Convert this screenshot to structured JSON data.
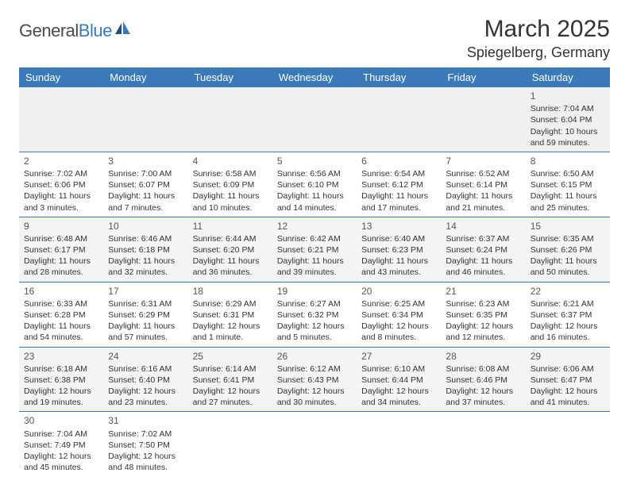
{
  "logo": {
    "text1": "General",
    "text2": "Blue",
    "text1_color": "#4a4a4a",
    "text2_color": "#3b7ab8",
    "icon_color": "#3b7ab8"
  },
  "header": {
    "month_title": "March 2025",
    "location": "Spiegelberg, Germany"
  },
  "colors": {
    "header_bg": "#3b7ab8",
    "header_fg": "#ffffff",
    "row_alt_bg": "#f4f4f4",
    "row_bg": "#ffffff",
    "border": "#3b7ab8",
    "text": "#333333"
  },
  "weekdays": [
    "Sunday",
    "Monday",
    "Tuesday",
    "Wednesday",
    "Thursday",
    "Friday",
    "Saturday"
  ],
  "calendar": {
    "type": "table",
    "columns": 7,
    "rows": [
      [
        null,
        null,
        null,
        null,
        null,
        null,
        {
          "day": "1",
          "sunrise": "Sunrise: 7:04 AM",
          "sunset": "Sunset: 6:04 PM",
          "daylight": "Daylight: 10 hours and 59 minutes."
        }
      ],
      [
        {
          "day": "2",
          "sunrise": "Sunrise: 7:02 AM",
          "sunset": "Sunset: 6:06 PM",
          "daylight": "Daylight: 11 hours and 3 minutes."
        },
        {
          "day": "3",
          "sunrise": "Sunrise: 7:00 AM",
          "sunset": "Sunset: 6:07 PM",
          "daylight": "Daylight: 11 hours and 7 minutes."
        },
        {
          "day": "4",
          "sunrise": "Sunrise: 6:58 AM",
          "sunset": "Sunset: 6:09 PM",
          "daylight": "Daylight: 11 hours and 10 minutes."
        },
        {
          "day": "5",
          "sunrise": "Sunrise: 6:56 AM",
          "sunset": "Sunset: 6:10 PM",
          "daylight": "Daylight: 11 hours and 14 minutes."
        },
        {
          "day": "6",
          "sunrise": "Sunrise: 6:54 AM",
          "sunset": "Sunset: 6:12 PM",
          "daylight": "Daylight: 11 hours and 17 minutes."
        },
        {
          "day": "7",
          "sunrise": "Sunrise: 6:52 AM",
          "sunset": "Sunset: 6:14 PM",
          "daylight": "Daylight: 11 hours and 21 minutes."
        },
        {
          "day": "8",
          "sunrise": "Sunrise: 6:50 AM",
          "sunset": "Sunset: 6:15 PM",
          "daylight": "Daylight: 11 hours and 25 minutes."
        }
      ],
      [
        {
          "day": "9",
          "sunrise": "Sunrise: 6:48 AM",
          "sunset": "Sunset: 6:17 PM",
          "daylight": "Daylight: 11 hours and 28 minutes."
        },
        {
          "day": "10",
          "sunrise": "Sunrise: 6:46 AM",
          "sunset": "Sunset: 6:18 PM",
          "daylight": "Daylight: 11 hours and 32 minutes."
        },
        {
          "day": "11",
          "sunrise": "Sunrise: 6:44 AM",
          "sunset": "Sunset: 6:20 PM",
          "daylight": "Daylight: 11 hours and 36 minutes."
        },
        {
          "day": "12",
          "sunrise": "Sunrise: 6:42 AM",
          "sunset": "Sunset: 6:21 PM",
          "daylight": "Daylight: 11 hours and 39 minutes."
        },
        {
          "day": "13",
          "sunrise": "Sunrise: 6:40 AM",
          "sunset": "Sunset: 6:23 PM",
          "daylight": "Daylight: 11 hours and 43 minutes."
        },
        {
          "day": "14",
          "sunrise": "Sunrise: 6:37 AM",
          "sunset": "Sunset: 6:24 PM",
          "daylight": "Daylight: 11 hours and 46 minutes."
        },
        {
          "day": "15",
          "sunrise": "Sunrise: 6:35 AM",
          "sunset": "Sunset: 6:26 PM",
          "daylight": "Daylight: 11 hours and 50 minutes."
        }
      ],
      [
        {
          "day": "16",
          "sunrise": "Sunrise: 6:33 AM",
          "sunset": "Sunset: 6:28 PM",
          "daylight": "Daylight: 11 hours and 54 minutes."
        },
        {
          "day": "17",
          "sunrise": "Sunrise: 6:31 AM",
          "sunset": "Sunset: 6:29 PM",
          "daylight": "Daylight: 11 hours and 57 minutes."
        },
        {
          "day": "18",
          "sunrise": "Sunrise: 6:29 AM",
          "sunset": "Sunset: 6:31 PM",
          "daylight": "Daylight: 12 hours and 1 minute."
        },
        {
          "day": "19",
          "sunrise": "Sunrise: 6:27 AM",
          "sunset": "Sunset: 6:32 PM",
          "daylight": "Daylight: 12 hours and 5 minutes."
        },
        {
          "day": "20",
          "sunrise": "Sunrise: 6:25 AM",
          "sunset": "Sunset: 6:34 PM",
          "daylight": "Daylight: 12 hours and 8 minutes."
        },
        {
          "day": "21",
          "sunrise": "Sunrise: 6:23 AM",
          "sunset": "Sunset: 6:35 PM",
          "daylight": "Daylight: 12 hours and 12 minutes."
        },
        {
          "day": "22",
          "sunrise": "Sunrise: 6:21 AM",
          "sunset": "Sunset: 6:37 PM",
          "daylight": "Daylight: 12 hours and 16 minutes."
        }
      ],
      [
        {
          "day": "23",
          "sunrise": "Sunrise: 6:18 AM",
          "sunset": "Sunset: 6:38 PM",
          "daylight": "Daylight: 12 hours and 19 minutes."
        },
        {
          "day": "24",
          "sunrise": "Sunrise: 6:16 AM",
          "sunset": "Sunset: 6:40 PM",
          "daylight": "Daylight: 12 hours and 23 minutes."
        },
        {
          "day": "25",
          "sunrise": "Sunrise: 6:14 AM",
          "sunset": "Sunset: 6:41 PM",
          "daylight": "Daylight: 12 hours and 27 minutes."
        },
        {
          "day": "26",
          "sunrise": "Sunrise: 6:12 AM",
          "sunset": "Sunset: 6:43 PM",
          "daylight": "Daylight: 12 hours and 30 minutes."
        },
        {
          "day": "27",
          "sunrise": "Sunrise: 6:10 AM",
          "sunset": "Sunset: 6:44 PM",
          "daylight": "Daylight: 12 hours and 34 minutes."
        },
        {
          "day": "28",
          "sunrise": "Sunrise: 6:08 AM",
          "sunset": "Sunset: 6:46 PM",
          "daylight": "Daylight: 12 hours and 37 minutes."
        },
        {
          "day": "29",
          "sunrise": "Sunrise: 6:06 AM",
          "sunset": "Sunset: 6:47 PM",
          "daylight": "Daylight: 12 hours and 41 minutes."
        }
      ],
      [
        {
          "day": "30",
          "sunrise": "Sunrise: 7:04 AM",
          "sunset": "Sunset: 7:49 PM",
          "daylight": "Daylight: 12 hours and 45 minutes."
        },
        {
          "day": "31",
          "sunrise": "Sunrise: 7:02 AM",
          "sunset": "Sunset: 7:50 PM",
          "daylight": "Daylight: 12 hours and 48 minutes."
        },
        null,
        null,
        null,
        null,
        null
      ]
    ]
  }
}
